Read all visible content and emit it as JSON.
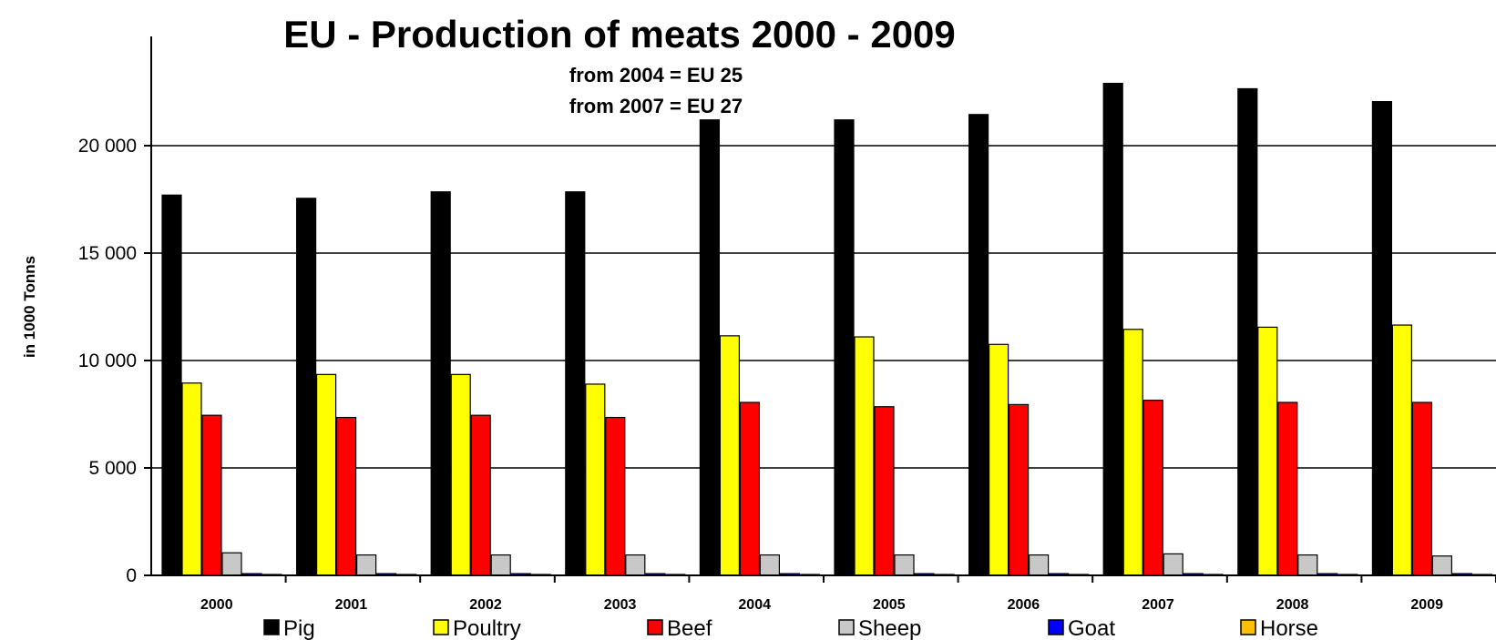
{
  "chart_data": {
    "type": "bar",
    "title": "EU - Production of meats  2000 - 2009",
    "subtitle": [
      "from 2004 = EU 25",
      "from 2007 = EU 27"
    ],
    "ylabel": "in 1000 Tonns",
    "xlabel": "",
    "ylim": [
      0,
      25000
    ],
    "yticks": [
      0,
      5000,
      10000,
      15000,
      20000
    ],
    "ytick_labels": [
      "0",
      "5 000",
      "10 000",
      "15 000",
      "20 000"
    ],
    "grid": true,
    "legend_position": "bottom",
    "categories": [
      "2000",
      "2001",
      "2002",
      "2003",
      "2004",
      "2005",
      "2006",
      "2007",
      "2008",
      "2009"
    ],
    "series": [
      {
        "name": "Pig",
        "color": "#000000",
        "values": [
          17700,
          17550,
          17850,
          17850,
          21200,
          21200,
          21450,
          22900,
          22650,
          22050
        ]
      },
      {
        "name": "Poultry",
        "color": "#ffff00",
        "values": [
          8950,
          9350,
          9350,
          8900,
          11150,
          11100,
          10750,
          11450,
          11550,
          11650
        ]
      },
      {
        "name": "Beef",
        "color": "#ff0000",
        "values": [
          7450,
          7350,
          7450,
          7350,
          8050,
          7850,
          7950,
          8150,
          8050,
          8050
        ]
      },
      {
        "name": "Sheep",
        "color": "#c8c8c8",
        "values": [
          1050,
          950,
          950,
          950,
          950,
          950,
          950,
          1000,
          950,
          900
        ]
      },
      {
        "name": "Goat",
        "color": "#0000ff",
        "values": [
          80,
          80,
          80,
          80,
          80,
          80,
          80,
          80,
          80,
          80
        ]
      },
      {
        "name": "Horse",
        "color": "#ffc000",
        "values": [
          40,
          40,
          40,
          40,
          40,
          40,
          40,
          40,
          40,
          40
        ]
      }
    ]
  }
}
